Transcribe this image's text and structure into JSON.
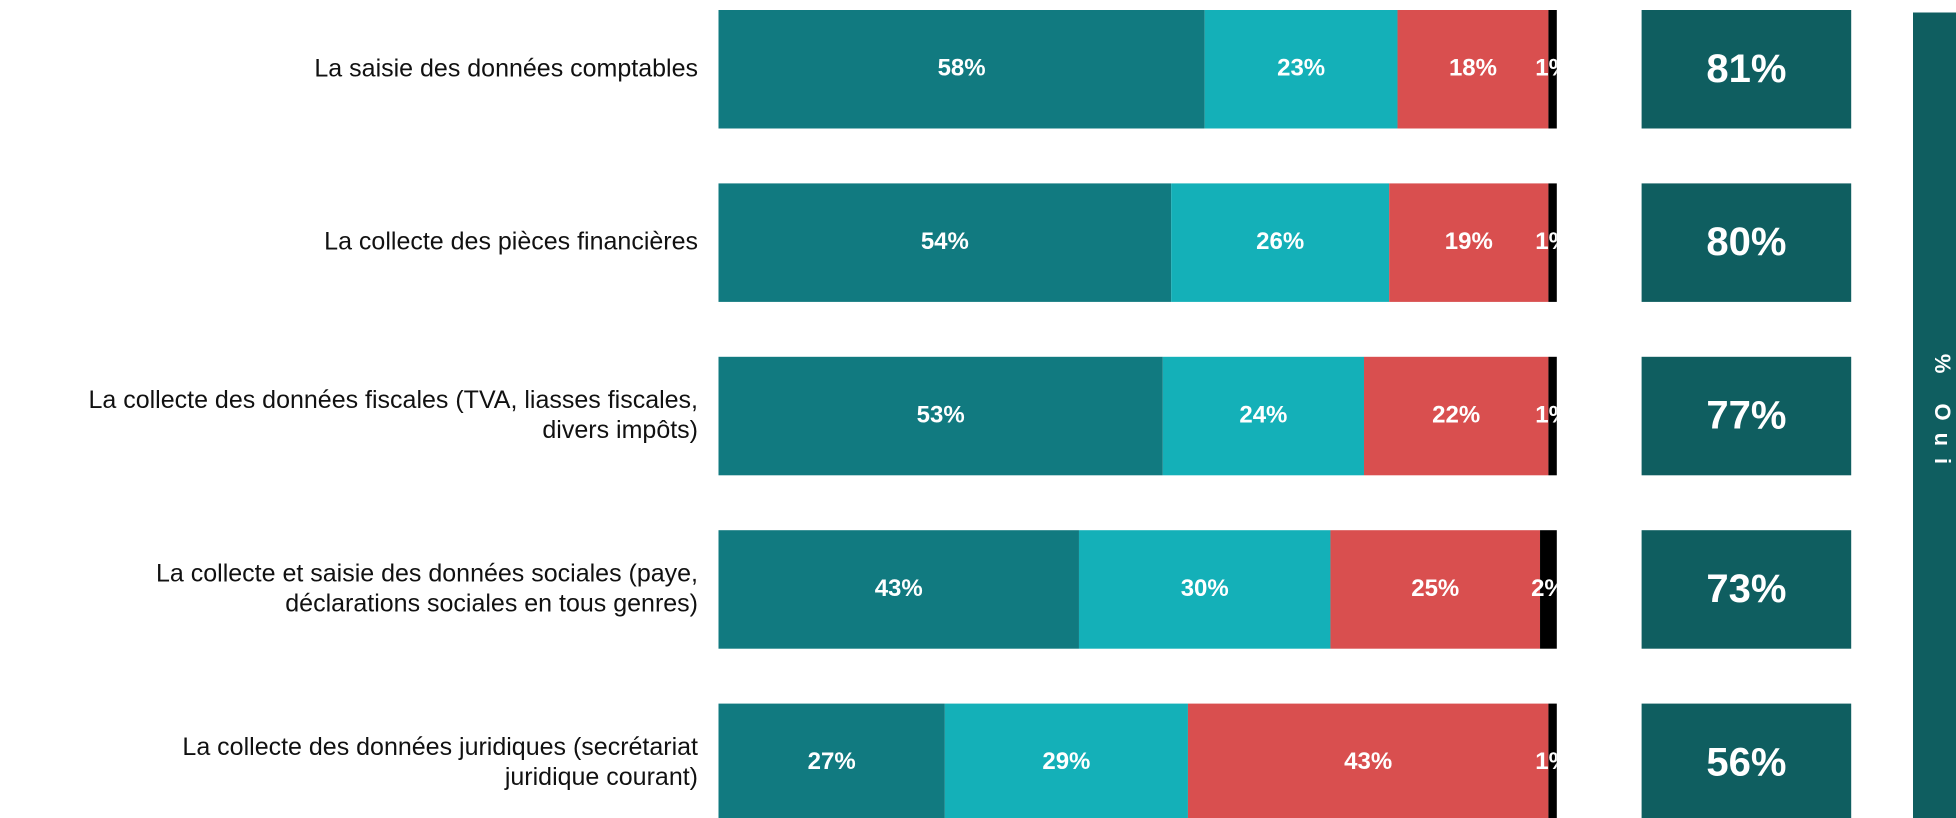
{
  "chart_data": {
    "type": "stacked-bar",
    "orientation": "horizontal",
    "categories": [
      "La saisie des données comptables",
      "La collecte des pièces financières",
      "La collecte des données fiscales (TVA, liasses fiscales,\ndivers impôts)",
      "La collecte et saisie des données sociales (paye,\ndéclarations sociales en tous genres)",
      "La collecte des données juridiques (secrétariat\njuridique courant)"
    ],
    "xlim": [
      0,
      100
    ],
    "series": [
      {
        "color": "#117a80",
        "values": [
          58,
          54,
          53,
          43,
          27
        ],
        "value_labels": [
          "58%",
          "54%",
          "53%",
          "43%",
          "27%"
        ]
      },
      {
        "color": "#14b0b8",
        "values": [
          23,
          26,
          24,
          30,
          29
        ],
        "value_labels": [
          "23%",
          "26%",
          "24%",
          "30%",
          "29%"
        ]
      },
      {
        "color": "#d94f4f",
        "values": [
          18,
          19,
          22,
          25,
          43
        ],
        "value_labels": [
          "18%",
          "19%",
          "22%",
          "25%",
          "43%"
        ]
      },
      {
        "color": "#000000",
        "values": [
          1,
          1,
          1,
          2,
          1
        ],
        "value_labels": [
          "1%",
          "1%",
          "1%",
          "2%",
          "1%"
        ]
      }
    ],
    "totals": {
      "label": "% Oui",
      "color": "#0f5e60",
      "values": [
        81,
        80,
        77,
        73,
        56
      ],
      "value_labels": [
        "81%",
        "80%",
        "77%",
        "73%",
        "56%"
      ]
    }
  }
}
